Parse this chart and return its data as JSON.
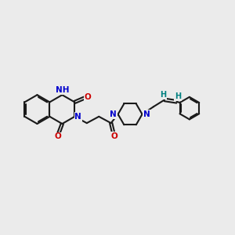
{
  "bg_color": "#ebebeb",
  "bond_color": "#1a1a1a",
  "N_color": "#0000cc",
  "O_color": "#cc0000",
  "H_color": "#008080",
  "figsize": [
    3.0,
    3.0
  ],
  "dpi": 100,
  "xlim": [
    0,
    10
  ],
  "ylim": [
    0,
    10
  ]
}
